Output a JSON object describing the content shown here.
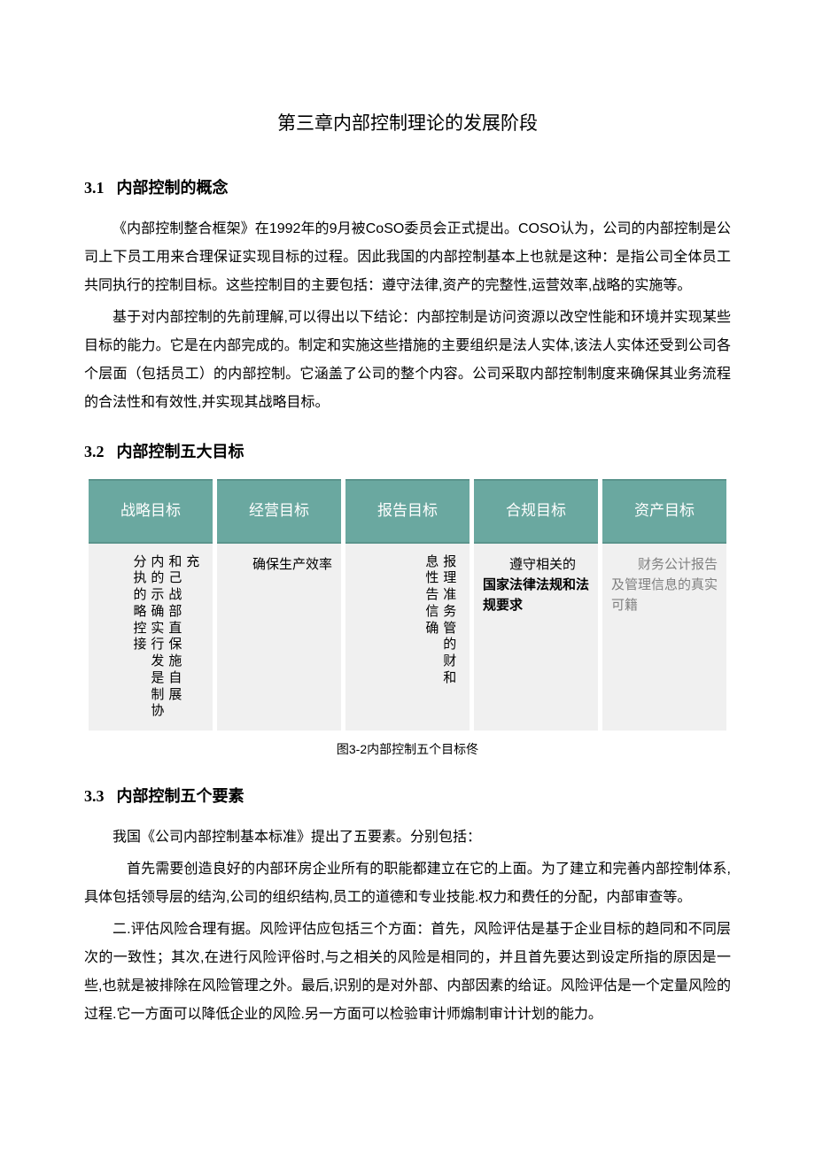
{
  "chapter_title": "第三章内部控制理论的发展阶段",
  "s31": {
    "num": "3.1",
    "title": "内部控制的概念",
    "p1": "《内部控制整合框架》在1992年的9月被CoSO委员会正式提出。COSO认为，公司的内部控制是公司上下员工用来合理保证实现目标的过程。因此我国的内部控制基本上也就是这种：是指公司全体员工共同执行的控制目标。这些控制目的主要包括：遵守法律,资产的完整性,运营效率,战略的实施等。",
    "p2": "基于对内部控制的先前理解,可以得出以下结论：内部控制是访问资源以改空性能和环境并实现某些目标的能力。它是在内部完成的。制定和实施这些措施的主要组织是法人实体,该法人实体还受到公司各个层面（包括员工）的内部控制。它涵盖了公司的整个内容。公司采取内部控制制度来确保其业务流程的合法性和有效性,并实现其战略目标。"
  },
  "s32": {
    "num": "3.2",
    "title": "内部控制五大目标",
    "table": {
      "header_bg": "#6aa8a0",
      "header_border": "#5a948c",
      "cell_bg": "#f0f0f0",
      "headers": [
        "战略目标",
        "经营目标",
        "报告目标",
        "合规目标",
        "资产目标"
      ],
      "row": {
        "c1_cols": [
          "分执的略控接",
          "内的示确实行发是制协",
          "和己战部直保施自展",
          "充"
        ],
        "c2": "　　确保生产效率",
        "c3_cols": [
          "息性告信确",
          "报理准务管的财和"
        ],
        "c4_plain": "　　遵守相关的",
        "c4_bold": "国家法律法规和法规要求",
        "c5": "　　财务公计报告及管理信息的真实可籍",
        "c5_color": "#808080"
      }
    },
    "caption": "图3-2内部控制五个目标佟"
  },
  "s33": {
    "num": "3.3",
    "title": "内部控制五个要素",
    "p1": "我国《公司内部控制基本标准》提出了五要素。分别包括：",
    "p2": "首先需要创造良好的内部环房企业所有的职能都建立在它的上面。为了建立和完善内部控制体系,具体包括领导层的结沟,公司的组织结构,员工的道德和专业技能.权力和费任的分配，内部审查等。",
    "p3": "二.评估风险合理有据。风险评估应包括三个方面：首先，风险评估是基于企业目标的趋同和不同层次的一致性；其次,在进行风险评俗时,与之相关的风险是相同的，并且首先要达到设定所指的原因是一些,也就是被排除在风险管理之外。最后,识别的是对外部、内部因素的给证。风险评估是一个定量风险的过程.它一方面可以降低企业的风险.另一方面可以检验审计师煽制审计计划的能力。"
  }
}
